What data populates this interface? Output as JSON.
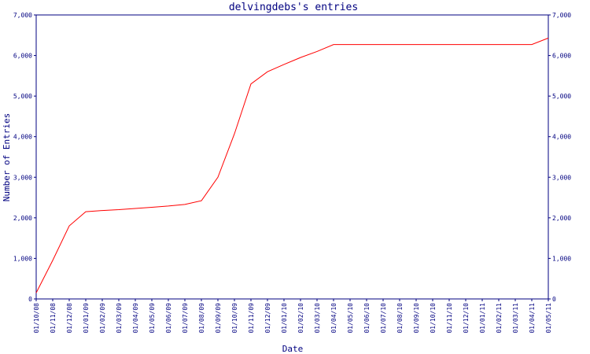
{
  "chart_data": {
    "type": "line",
    "title": "delvingdebs's entries",
    "x_label": "Date",
    "y_label": "Number of Entries",
    "categories": [
      "01/10/08",
      "01/11/08",
      "01/12/08",
      "01/01/09",
      "01/02/09",
      "01/03/09",
      "01/04/09",
      "01/05/09",
      "01/06/09",
      "01/07/09",
      "01/08/09",
      "01/09/09",
      "01/10/09",
      "01/11/09",
      "01/12/09",
      "01/01/10",
      "01/02/10",
      "01/03/10",
      "01/04/10",
      "01/05/10",
      "01/06/10",
      "01/07/10",
      "01/08/10",
      "01/09/10",
      "01/10/10",
      "01/11/10",
      "01/12/10",
      "01/01/11",
      "01/02/11",
      "01/03/11",
      "01/04/11",
      "01/05/11"
    ],
    "values": [
      150,
      950,
      1800,
      2150,
      2180,
      2200,
      2230,
      2260,
      2290,
      2330,
      2420,
      3000,
      4070,
      5300,
      5600,
      5780,
      5950,
      6100,
      6270,
      6270,
      6270,
      6270,
      6270,
      6270,
      6270,
      6270,
      6270,
      6270,
      6270,
      6270,
      6270,
      6430
    ],
    "color": "#ff0000",
    "ylim": [
      0,
      7000
    ],
    "yticks": [
      {
        "value": 0,
        "label": "0"
      },
      {
        "value": 1000,
        "label": "1,000"
      },
      {
        "value": 2000,
        "label": "2,000"
      },
      {
        "value": 3000,
        "label": "3,000"
      },
      {
        "value": 4000,
        "label": "4,000"
      },
      {
        "value": 5000,
        "label": "5,000"
      },
      {
        "value": 6000,
        "label": "6,000"
      },
      {
        "value": 7000,
        "label": "7,000"
      }
    ]
  }
}
